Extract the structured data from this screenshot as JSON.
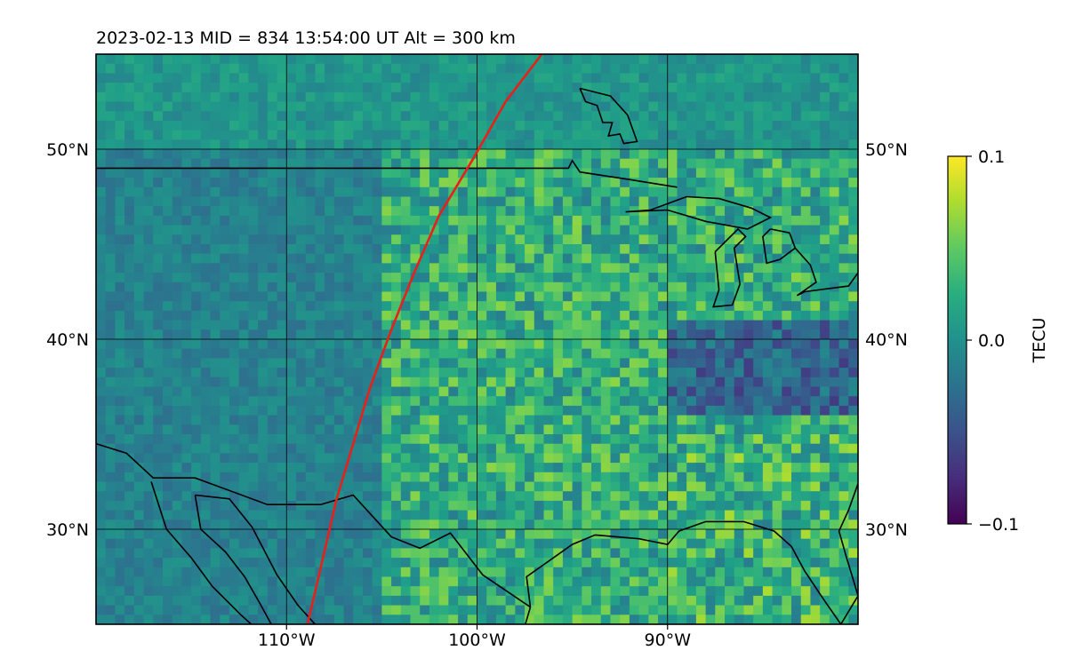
{
  "chart_data": {
    "type": "heatmap",
    "title": "2023-02-13  MID = 834    13:54:00  UT  Alt = 300 km",
    "x_ticks": [
      {
        "lon": -110,
        "label": "110°W"
      },
      {
        "lon": -100,
        "label": "100°W"
      },
      {
        "lon": -90,
        "label": "90°W"
      }
    ],
    "y_ticks": [
      {
        "lat": 30,
        "label": "30°N"
      },
      {
        "lat": 40,
        "label": "40°N"
      },
      {
        "lat": 50,
        "label": "50°N"
      }
    ],
    "xlim": [
      -120,
      -80
    ],
    "ylim": [
      25,
      55
    ],
    "grid": true,
    "colorbar": {
      "label": "TECU",
      "vmin": -0.1,
      "vmax": 0.1,
      "ticks": [
        {
          "value": 0.1,
          "label": "0.1"
        },
        {
          "value": 0.0,
          "label": "0.0"
        },
        {
          "value": -0.1,
          "label": "−0.1"
        }
      ],
      "colormap": "viridis"
    },
    "track": {
      "color": "#e8201a",
      "points": [
        [
          -108.9,
          25
        ],
        [
          -108.2,
          28
        ],
        [
          -107.4,
          31.5
        ],
        [
          -106.5,
          34.5
        ],
        [
          -105.6,
          37.5
        ],
        [
          -104.5,
          40.5
        ],
        [
          -103.3,
          43.5
        ],
        [
          -102.0,
          46.5
        ],
        [
          -100.2,
          49.5
        ],
        [
          -98.5,
          52.5
        ],
        [
          -96.6,
          55
        ]
      ]
    },
    "description_regions": [
      {
        "name": "west",
        "lon": [
          -120,
          -105
        ],
        "lat": [
          25,
          55
        ],
        "mean_tecu": -0.01
      },
      {
        "name": "central",
        "lon": [
          -105,
          -90
        ],
        "lat": [
          25,
          50
        ],
        "mean_tecu": 0.03
      },
      {
        "name": "east",
        "lon": [
          -90,
          -80
        ],
        "lat": [
          36,
          41
        ],
        "mean_tecu": -0.05
      }
    ]
  }
}
